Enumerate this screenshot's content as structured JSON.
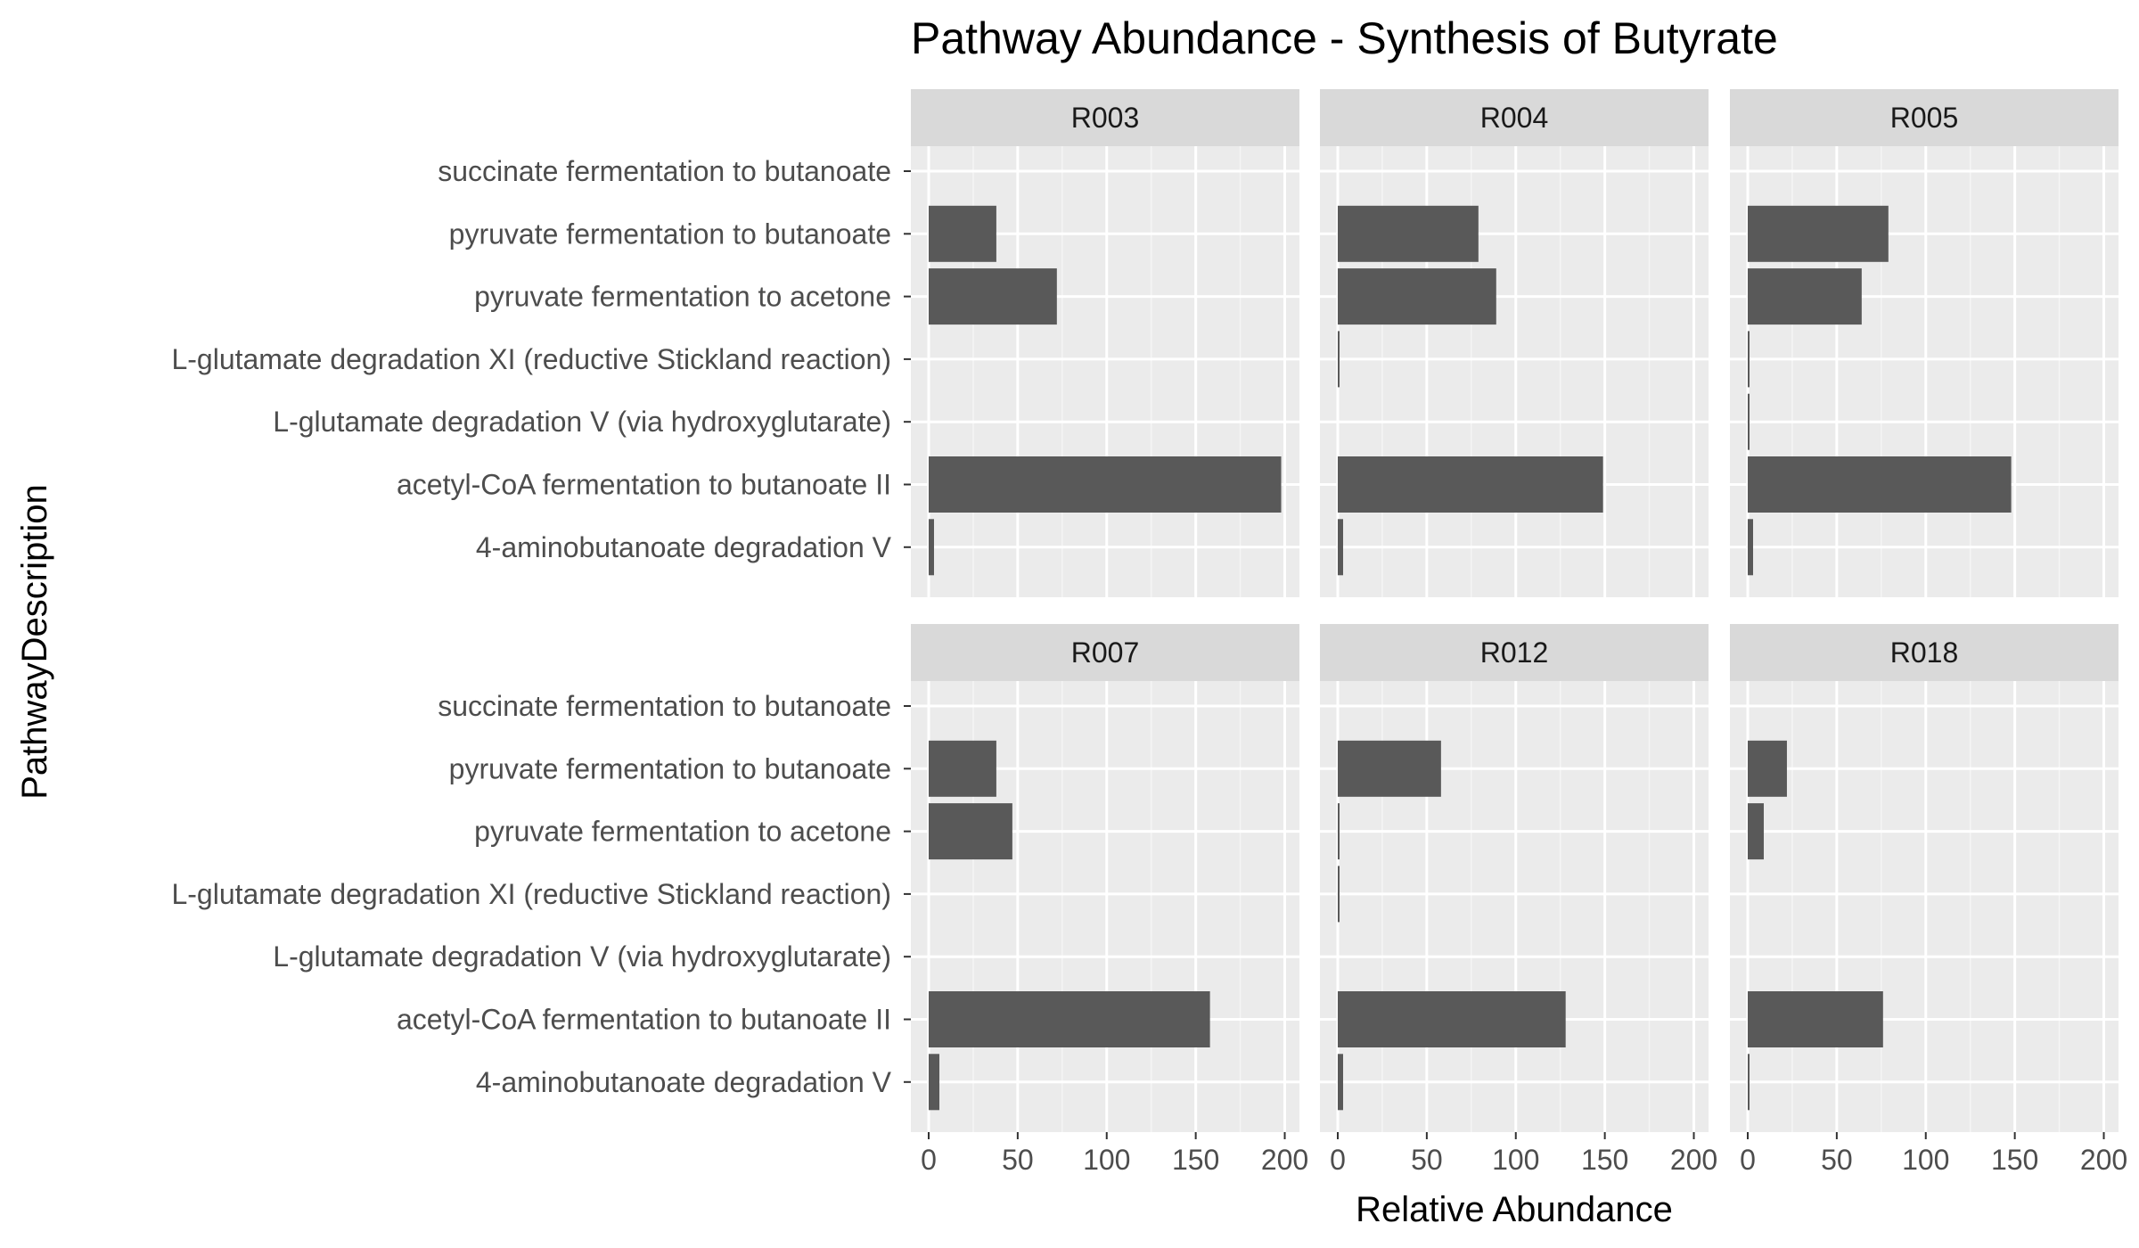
{
  "chart_data": {
    "type": "bar",
    "orientation": "horizontal",
    "title": "Pathway Abundance - Synthesis of Butyrate",
    "xlabel": "Relative Abundance",
    "ylabel": "PathwayDescription",
    "xlim": [
      0,
      200
    ],
    "x_ticks": [
      0,
      50,
      100,
      150,
      200
    ],
    "grid": true,
    "legend": "none",
    "bar_color": "#595959",
    "panel_background": "#ebebeb",
    "strip_background": "#d9d9d9",
    "categories": [
      "succinate fermentation to butanoate",
      "pyruvate fermentation to butanoate",
      "pyruvate fermentation to acetone",
      "L-glutamate degradation XI (reductive Stickland reaction)",
      "L-glutamate degradation V (via hydroxyglutarate)",
      "acetyl-CoA fermentation to butanoate II",
      "4-aminobutanoate degradation V"
    ],
    "facets": [
      {
        "name": "R003",
        "values": [
          0,
          38,
          72,
          0,
          0,
          198,
          3
        ]
      },
      {
        "name": "R004",
        "values": [
          0,
          79,
          89,
          1,
          0,
          149,
          3
        ]
      },
      {
        "name": "R005",
        "values": [
          0,
          79,
          64,
          1,
          1,
          148,
          3
        ]
      },
      {
        "name": "R007",
        "values": [
          0,
          38,
          47,
          0,
          0,
          158,
          6
        ]
      },
      {
        "name": "R012",
        "values": [
          0,
          58,
          1,
          1,
          0,
          128,
          3
        ]
      },
      {
        "name": "R018",
        "values": [
          0,
          22,
          9,
          0,
          0,
          76,
          1
        ]
      }
    ]
  }
}
